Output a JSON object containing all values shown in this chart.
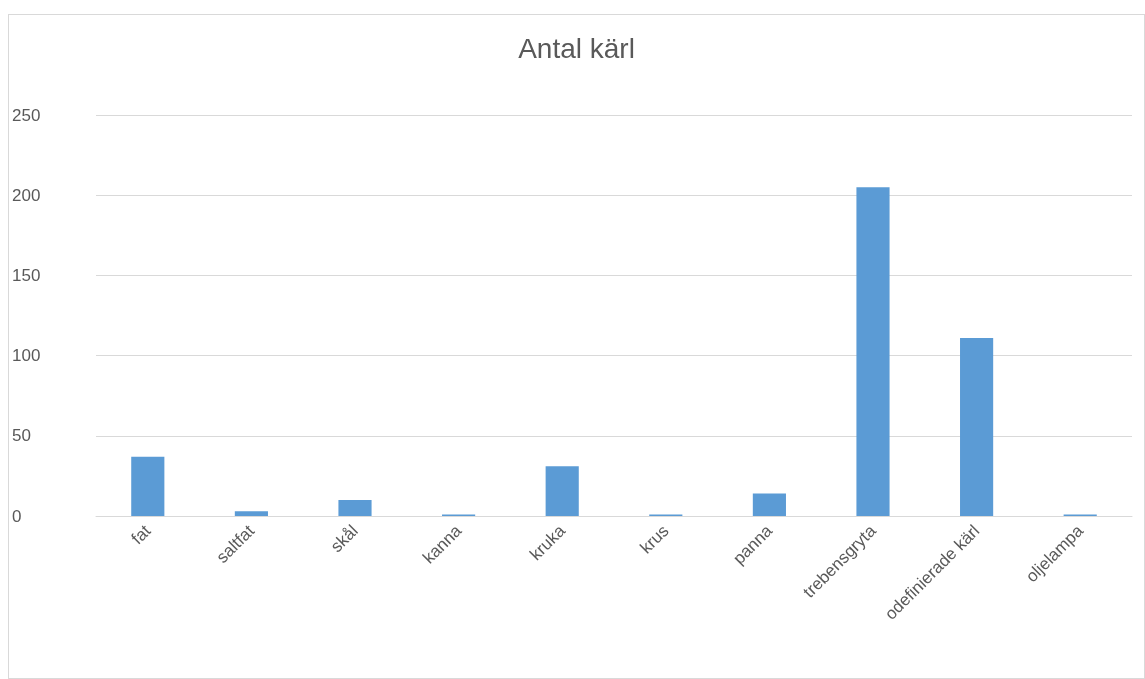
{
  "chart_data": {
    "type": "bar",
    "title": "Antal kärl",
    "categories": [
      "fat",
      "saltfat",
      "skål",
      "kanna",
      "kruka",
      "krus",
      "panna",
      "trebensgryta",
      "odefinierade kärl",
      "oljelampa"
    ],
    "values": [
      37,
      3,
      10,
      1,
      31,
      1,
      14,
      205,
      111,
      1
    ],
    "color": "#5b9bd5",
    "ylim": [
      0,
      250
    ],
    "yticks": [
      0,
      50,
      100,
      150,
      200,
      250
    ],
    "grid": "y"
  }
}
